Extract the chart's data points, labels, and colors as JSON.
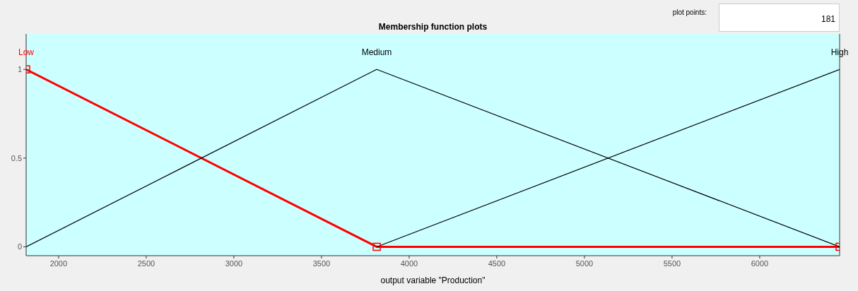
{
  "chart_data": {
    "type": "line",
    "title": "Membership function plots",
    "xlabel": "output variable \"Production\"",
    "annotations": [
      "plot points:",
      "181"
    ],
    "xlim": [
      1815,
      6456
    ],
    "xticks": [
      2000,
      2500,
      3000,
      3500,
      4000,
      4500,
      5000,
      5500,
      6000
    ],
    "ylim": [
      -0.05,
      1.2
    ],
    "yticks": [
      0,
      0.5,
      1
    ],
    "grid": false,
    "legend": false,
    "series": [
      {
        "name": "Low",
        "color": "#ff0000",
        "x": [
          1815,
          3815,
          6456
        ],
        "values": [
          1,
          0,
          0
        ],
        "marker": "square"
      },
      {
        "name": "Medium",
        "color": "#000000",
        "x": [
          1815,
          3815,
          6456
        ],
        "values": [
          0,
          1,
          0
        ]
      },
      {
        "name": "High",
        "color": "#000000",
        "x": [
          3815,
          6456
        ],
        "values": [
          0,
          1
        ]
      }
    ]
  }
}
